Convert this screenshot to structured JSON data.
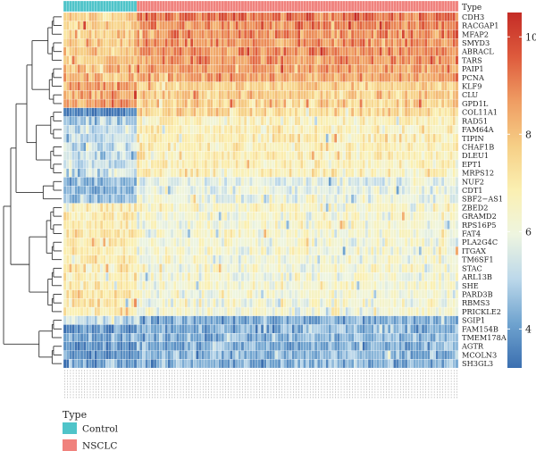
{
  "chart_data": {
    "type": "heatmap",
    "annotation_track": {
      "name": "Type",
      "groups": [
        {
          "label": "Control",
          "count": 26,
          "color": "#4fc4c9"
        },
        {
          "label": "NSCLC",
          "count": 114,
          "color": "#f0827d"
        }
      ]
    },
    "rows": [
      "CDH3",
      "RACGAP1",
      "MFAP2",
      "SMYD3",
      "ABRACL",
      "TARS",
      "PAIP1",
      "PCNA",
      "KLF9",
      "CLU",
      "GPD1L",
      "COL11A1",
      "RAD51",
      "FAM64A",
      "TIPIN",
      "CHAF1B",
      "DLEU1",
      "EPT1",
      "MRPS12",
      "NUF2",
      "CDT1",
      "SBF2−AS1",
      "ZBED2",
      "GRAMD2",
      "RPS16P5",
      "FAT4",
      "PLA2G4C",
      "ITGAX",
      "TM6SF1",
      "STAC",
      "ARL13B",
      "SHE",
      "PARD3B",
      "RBMS3",
      "PRICKLE2",
      "SGIP1",
      "FAM154B",
      "TMEM178A",
      "AGTR",
      "MCOLN3",
      "SH3GL3"
    ],
    "row_means": {
      "control": [
        7.6,
        7.6,
        7.8,
        7.8,
        7.8,
        7.9,
        8.0,
        8.1,
        8.6,
        8.5,
        8.7,
        3.6,
        4.9,
        5.1,
        5.2,
        5.3,
        5.3,
        5.2,
        5.3,
        4.4,
        4.5,
        4.6,
        6.8,
        7.0,
        7.0,
        7.1,
        6.9,
        7.0,
        7.0,
        6.9,
        7.0,
        7.0,
        7.1,
        7.0,
        7.0,
        5.2,
        3.9,
        4.0,
        3.9,
        3.8,
        4.0
      ],
      "nsclc": [
        9.3,
        9.0,
        8.9,
        8.8,
        8.8,
        8.8,
        8.7,
        8.6,
        7.7,
        7.8,
        7.6,
        7.5,
        6.7,
        6.7,
        6.9,
        6.8,
        6.8,
        6.8,
        6.7,
        5.7,
        5.8,
        5.9,
        6.4,
        6.3,
        6.2,
        6.3,
        6.2,
        6.2,
        6.2,
        6.2,
        6.2,
        6.2,
        6.2,
        6.2,
        6.2,
        4.2,
        4.4,
        4.4,
        4.3,
        4.4,
        4.3
      ]
    },
    "legend_title": "Type",
    "colorbar": {
      "ticks": [
        "4",
        "6",
        "8",
        "10"
      ],
      "range": [
        3.2,
        10.5
      ],
      "colors": [
        "#3b6fb0",
        "#6fa3cf",
        "#bcd8ea",
        "#eef5e0",
        "#fbf0b2",
        "#f6cf86",
        "#ef9d63",
        "#de5b3d",
        "#c42c26"
      ]
    },
    "legend": [
      {
        "label": "Control",
        "color": "#4fc4c9"
      },
      {
        "label": "NSCLC",
        "color": "#f0827d"
      }
    ]
  }
}
